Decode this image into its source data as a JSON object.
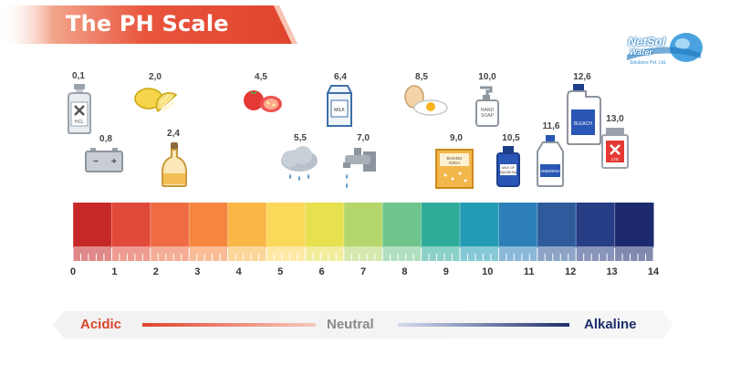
{
  "title": "The PH Scale",
  "logo": {
    "name": "NetSol",
    "sub": "Water",
    "tagline": "Solutions Pvt. Ltd."
  },
  "items": [
    {
      "ph": "0,1",
      "icon": "hcl-bottle-icon",
      "text": "HCL"
    },
    {
      "ph": "0,8",
      "icon": "car-battery-icon",
      "text": ""
    },
    {
      "ph": "2,0",
      "icon": "lemon-icon",
      "text": ""
    },
    {
      "ph": "2,4",
      "icon": "vinegar-bottle-icon",
      "text": ""
    },
    {
      "ph": "4,5",
      "icon": "tomato-icon",
      "text": ""
    },
    {
      "ph": "5,5",
      "icon": "rain-cloud-icon",
      "text": ""
    },
    {
      "ph": "6,4",
      "icon": "milk-carton-icon",
      "text": "MILK"
    },
    {
      "ph": "7,0",
      "icon": "water-tap-icon",
      "text": ""
    },
    {
      "ph": "8,5",
      "icon": "egg-icon",
      "text": ""
    },
    {
      "ph": "9,0",
      "icon": "baking-soda-icon",
      "text": "BAKING SODA"
    },
    {
      "ph": "10,0",
      "icon": "hand-soap-icon",
      "text": "HAND SOAP"
    },
    {
      "ph": "10,5",
      "icon": "milk-of-magnesia-icon",
      "text": "MILK OF MAGNESIA"
    },
    {
      "ph": "11,6",
      "icon": "ammonia-bottle-icon",
      "text": "AMMONIA"
    },
    {
      "ph": "12,6",
      "icon": "bleach-bottle-icon",
      "text": "BLEACH"
    },
    {
      "ph": "13,0",
      "icon": "lye-container-icon",
      "text": "LYE"
    }
  ],
  "scale": {
    "ticks": [
      "0",
      "1",
      "2",
      "3",
      "4",
      "5",
      "6",
      "7",
      "8",
      "9",
      "10",
      "11",
      "12",
      "13",
      "14"
    ],
    "colors": [
      "#c62828",
      "#e1493a",
      "#ef6b43",
      "#f5853f",
      "#f9b645",
      "#fbd85a",
      "#e7e04f",
      "#b4d66a",
      "#6fc58b",
      "#2fab99",
      "#219cb4",
      "#2d7fb7",
      "#2f5a9c",
      "#273d86",
      "#1d2a6d"
    ]
  },
  "legend": {
    "acidic": "Acidic",
    "neutral": "Neutral",
    "alkaline": "Alkaline"
  }
}
